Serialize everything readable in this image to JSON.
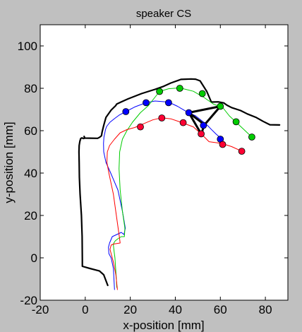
{
  "chart_data": {
    "type": "line",
    "title": "speaker CS",
    "xlabel": "x-position [mm]",
    "ylabel": "y-position [mm]",
    "xlim": [
      -20,
      90
    ],
    "ylim": [
      -20,
      110
    ],
    "xticks": [
      -20,
      0,
      20,
      40,
      60,
      80
    ],
    "yticks": [
      -20,
      0,
      20,
      40,
      60,
      80,
      100
    ],
    "grid": false,
    "legend": "none",
    "series": [
      {
        "color": "#000000",
        "width": 2.2,
        "x": [
          10,
          8.2,
          6.3,
          2,
          -1.3,
          -1.3,
          -1.4,
          -1.7,
          -2.3,
          -2.6,
          -2.7,
          -2.8,
          -2.7,
          -2.4,
          -2,
          -1.5,
          -0.8,
          -0.5,
          -0.3,
          -0.5,
          -0.2,
          5.5,
          6.4,
          7.2,
          7.5,
          8.2,
          9.2,
          11.5,
          13.5,
          14,
          16,
          19,
          25,
          31,
          34.5,
          38,
          42.5,
          47,
          49,
          51,
          54,
          56,
          59,
          61.5,
          63,
          65,
          69,
          72,
          76,
          79,
          82,
          86.3
        ],
        "y": [
          -13,
          -8,
          -6.2,
          -5,
          -4,
          -1,
          10,
          20,
          30,
          38,
          45,
          50,
          53,
          55,
          56.3,
          56.6,
          56.3,
          56.4,
          56.7,
          57.3,
          56.5,
          56.4,
          56.9,
          57.6,
          59.5,
          62.5,
          66.3,
          69.7,
          71.8,
          72.6,
          73.6,
          75,
          77.5,
          79.5,
          80.8,
          82.5,
          84.2,
          84.4,
          84.3,
          83.5,
          78.5,
          73.5,
          73.6,
          73.1,
          72,
          70.9,
          69.5,
          67.9,
          66.2,
          64.4,
          62.8,
          62.7
        ]
      },
      {
        "color": "#0000ff",
        "width": 1,
        "x": [
          13,
          12.5,
          11.5,
          10.5,
          10.3,
          10.8,
          12,
          14,
          16,
          17.2,
          17.8,
          16.5,
          14.5,
          11.3,
          9.2,
          8.2,
          8.1,
          8.3,
          8.7,
          9,
          9.5,
          11,
          13,
          15,
          18,
          22,
          27,
          31,
          37,
          41,
          45.5,
          49,
          52,
          54,
          56,
          58,
          59.6,
          60
        ],
        "y": [
          -15,
          -5,
          0,
          2,
          5,
          7,
          10,
          11,
          12,
          11,
          14,
          22,
          32,
          40,
          45,
          50,
          54,
          57,
          59,
          60.5,
          62,
          64,
          65.7,
          67.3,
          69,
          71.2,
          73.2,
          74,
          73.5,
          71.5,
          68.7,
          67,
          64.5,
          62.8,
          60.6,
          58.5,
          57,
          54
        ]
      },
      {
        "color": "#00cc00",
        "width": 1,
        "x": [
          14,
          13.8,
          13.5,
          13.2,
          12.8,
          12.5,
          12.7,
          13.3,
          14.5,
          16,
          17.4,
          17.6,
          16.5,
          15.5,
          15,
          15.3,
          16.5,
          18.5,
          21,
          24.5,
          28,
          33,
          37,
          42,
          48,
          53,
          57,
          61,
          64,
          67,
          70,
          74
        ],
        "y": [
          -14,
          -10,
          -5,
          0,
          3,
          6,
          7,
          8,
          9,
          10,
          10,
          14,
          22,
          32,
          42,
          50,
          56,
          60,
          64,
          68.5,
          71.8,
          78.5,
          79.8,
          80.2,
          78.6,
          75.5,
          72.5,
          71,
          67,
          64,
          61,
          57
        ]
      },
      {
        "color": "#ff0000",
        "width": 1,
        "x": [
          14.3,
          13.6,
          12.5,
          11.5,
          11,
          11.5,
          12.5,
          15.5,
          15,
          13.8,
          12.5,
          10.5,
          9.6,
          9.8,
          10.8,
          13,
          15.5,
          18.5,
          22,
          26,
          30,
          34,
          38,
          43,
          48,
          52,
          55,
          60.5,
          65,
          69.5
        ],
        "y": [
          -15,
          -8,
          -2,
          2,
          4,
          6,
          6.5,
          7,
          11,
          20,
          30,
          40,
          45,
          50,
          53,
          56,
          59,
          60.5,
          61.5,
          63.3,
          65.1,
          66.1,
          65.6,
          63.8,
          61.8,
          58,
          54.8,
          54,
          52.5,
          50.3
        ]
      },
      {
        "color": "#000000",
        "width": 3,
        "x": [
          46,
          60,
          53,
          46,
          51.5,
          53
        ],
        "y": [
          68.5,
          71.5,
          62.8,
          68.5,
          58.5,
          62.8
        ]
      }
    ],
    "markers": [
      {
        "fill": "#0000ff",
        "x": [
          18,
          27,
          37,
          46,
          52.5,
          60
        ],
        "y": [
          69,
          73.2,
          73.2,
          68.5,
          62.5,
          56
        ]
      },
      {
        "fill": "#00cc00",
        "x": [
          33,
          42,
          52,
          60,
          67,
          74
        ],
        "y": [
          78.5,
          80,
          77.5,
          71.5,
          64.2,
          57
        ]
      },
      {
        "fill": "#ff0033",
        "x": [
          24.5,
          34,
          43.5,
          51.5,
          61,
          69.5
        ],
        "y": [
          61.8,
          66,
          63.8,
          58.5,
          53.5,
          50.3
        ]
      }
    ]
  }
}
